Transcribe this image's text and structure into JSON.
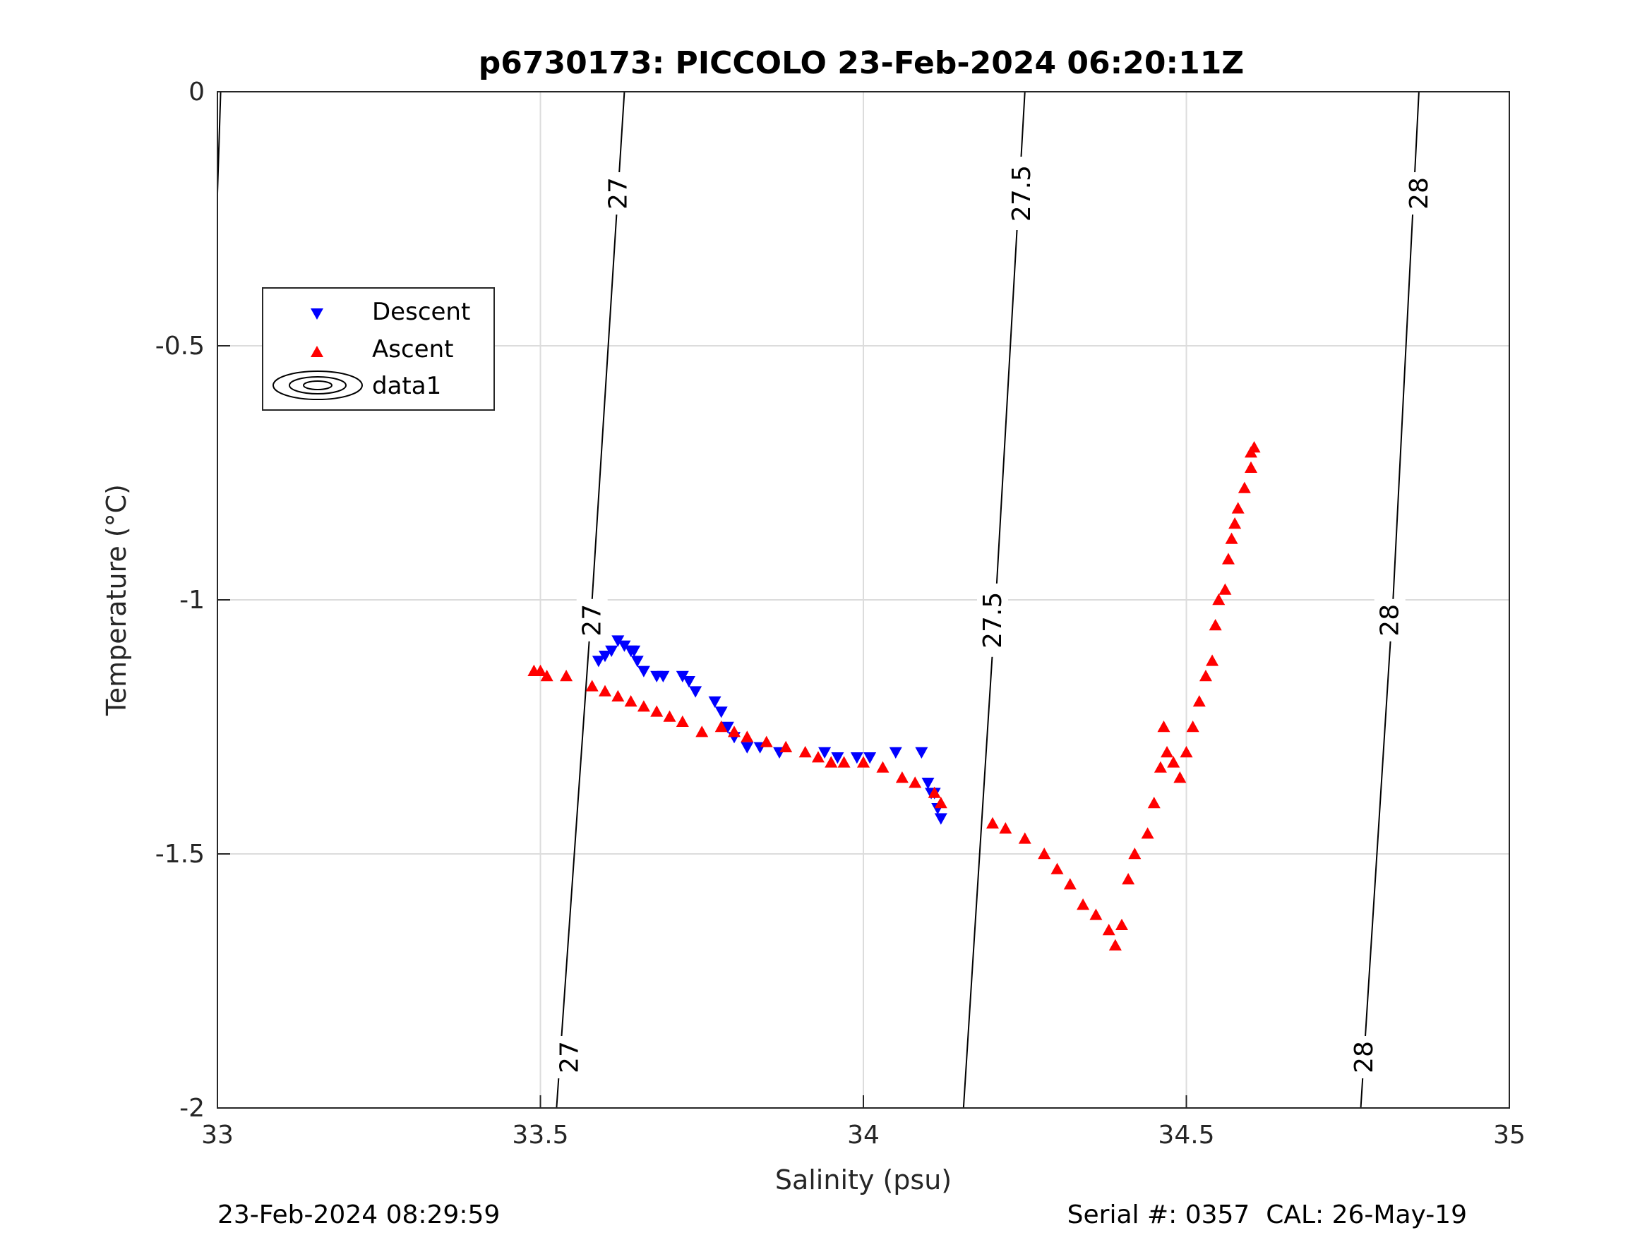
{
  "chart_data": {
    "type": "scatter",
    "title": "p6730173: PICCOLO 23-Feb-2024 06:20:11Z",
    "xlabel": "Salinity (psu)",
    "ylabel": "Temperature (°C)",
    "xlim": [
      33,
      35
    ],
    "ylim": [
      -2,
      0
    ],
    "x_ticks": [
      "33",
      "33.5",
      "34",
      "34.5",
      "35"
    ],
    "x_tick_values": [
      33,
      33.5,
      34,
      34.5,
      35
    ],
    "y_ticks": [
      "0",
      "-0.5",
      "-1",
      "-1.5",
      "-2"
    ],
    "y_tick_values": [
      0,
      -0.5,
      -1,
      -1.5,
      -2
    ],
    "grid": true,
    "legend_position": "upper-left",
    "legend": [
      "Descent",
      "Ascent",
      "data1"
    ],
    "series": [
      {
        "name": "Descent",
        "marker": "triangle-down",
        "color": "#0000ff",
        "x": [
          33.59,
          33.6,
          33.61,
          33.62,
          33.63,
          33.64,
          33.645,
          33.65,
          33.66,
          33.68,
          33.69,
          33.72,
          33.73,
          33.74,
          33.77,
          33.78,
          33.79,
          33.8,
          33.82,
          33.84,
          33.87,
          33.94,
          33.96,
          33.99,
          34.01,
          34.05,
          34.09,
          34.1,
          34.105,
          34.11,
          34.115,
          34.12
        ],
        "y": [
          -1.12,
          -1.11,
          -1.1,
          -1.08,
          -1.09,
          -1.1,
          -1.1,
          -1.12,
          -1.14,
          -1.15,
          -1.15,
          -1.15,
          -1.16,
          -1.18,
          -1.2,
          -1.22,
          -1.25,
          -1.27,
          -1.29,
          -1.29,
          -1.3,
          -1.3,
          -1.31,
          -1.31,
          -1.31,
          -1.3,
          -1.3,
          -1.36,
          -1.38,
          -1.38,
          -1.41,
          -1.43
        ]
      },
      {
        "name": "Ascent",
        "marker": "triangle-up",
        "color": "#ff0000",
        "x": [
          33.49,
          33.5,
          33.51,
          33.54,
          33.58,
          33.6,
          33.62,
          33.64,
          33.66,
          33.68,
          33.7,
          33.72,
          33.75,
          33.78,
          33.8,
          33.82,
          33.85,
          33.88,
          33.91,
          33.93,
          33.95,
          33.97,
          34.0,
          34.03,
          34.06,
          34.08,
          34.11,
          34.12,
          34.2,
          34.22,
          34.25,
          34.28,
          34.3,
          34.32,
          34.34,
          34.36,
          34.38,
          34.39,
          34.4,
          34.41,
          34.42,
          34.44,
          34.45,
          34.46,
          34.465,
          34.47,
          34.48,
          34.49,
          34.5,
          34.51,
          34.52,
          34.53,
          34.54,
          34.545,
          34.55,
          34.56,
          34.565,
          34.57,
          34.575,
          34.58,
          34.59,
          34.6,
          34.6,
          34.605
        ],
        "y": [
          -1.14,
          -1.14,
          -1.15,
          -1.15,
          -1.17,
          -1.18,
          -1.19,
          -1.2,
          -1.21,
          -1.22,
          -1.23,
          -1.24,
          -1.26,
          -1.25,
          -1.26,
          -1.27,
          -1.28,
          -1.29,
          -1.3,
          -1.31,
          -1.32,
          -1.32,
          -1.32,
          -1.33,
          -1.35,
          -1.36,
          -1.38,
          -1.4,
          -1.44,
          -1.45,
          -1.47,
          -1.5,
          -1.53,
          -1.56,
          -1.6,
          -1.62,
          -1.65,
          -1.68,
          -1.64,
          -1.55,
          -1.5,
          -1.46,
          -1.4,
          -1.33,
          -1.25,
          -1.3,
          -1.32,
          -1.35,
          -1.3,
          -1.25,
          -1.2,
          -1.15,
          -1.12,
          -1.05,
          -1.0,
          -0.98,
          -0.92,
          -0.88,
          -0.85,
          -0.82,
          -0.78,
          -0.74,
          -0.71,
          -0.7
        ]
      }
    ],
    "contours": [
      {
        "label": "27",
        "points": [
          [
            33.525,
            -2.0
          ],
          [
            33.58,
            -1.0
          ],
          [
            33.63,
            0.0
          ]
        ]
      },
      {
        "label": "27.5",
        "points": [
          [
            34.155,
            -2.0
          ],
          [
            34.205,
            -1.0
          ],
          [
            34.25,
            0.0
          ]
        ]
      },
      {
        "label": "28",
        "points": [
          [
            34.77,
            -2.0
          ],
          [
            34.82,
            -1.0
          ],
          [
            34.86,
            0.0
          ]
        ]
      },
      {
        "label": "",
        "points": [
          [
            32.985,
            -0.2
          ],
          [
            33.005,
            0.0
          ]
        ]
      }
    ],
    "contour_labels": [
      {
        "text": "27",
        "x": 33.62,
        "y": -0.2
      },
      {
        "text": "27",
        "x": 33.58,
        "y": -1.04
      },
      {
        "text": "27",
        "x": 33.545,
        "y": -1.9
      },
      {
        "text": "27.5",
        "x": 34.245,
        "y": -0.2
      },
      {
        "text": "27.5",
        "x": 34.2,
        "y": -1.04
      },
      {
        "text": "28",
        "x": 34.86,
        "y": -0.2
      },
      {
        "text": "28",
        "x": 34.815,
        "y": -1.04
      },
      {
        "text": "28",
        "x": 34.775,
        "y": -1.9
      }
    ]
  },
  "footer": {
    "left": "23-Feb-2024 08:29:59",
    "right": "Serial #: 0357  CAL: 26-May-19"
  }
}
